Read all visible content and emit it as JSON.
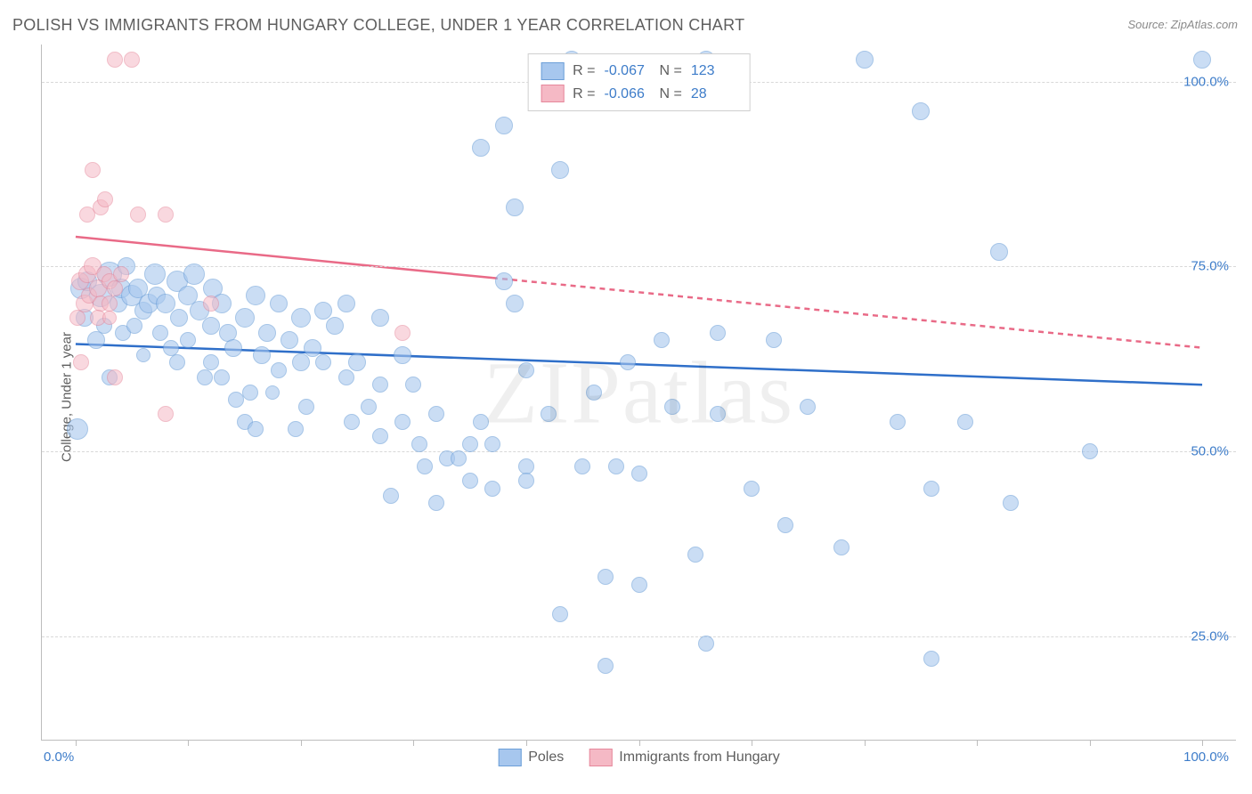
{
  "title": "POLISH VS IMMIGRANTS FROM HUNGARY COLLEGE, UNDER 1 YEAR CORRELATION CHART",
  "source": "Source: ZipAtlas.com",
  "watermark": "ZIPatlas",
  "xlabel": "",
  "ylabel": "College, Under 1 year",
  "xmin": -3,
  "xmax": 103,
  "ymin": 11,
  "ymax": 105,
  "x_tick_min_label": "0.0%",
  "x_tick_max_label": "100.0%",
  "y_ticks": [
    {
      "value": 25.0,
      "label": "25.0%"
    },
    {
      "value": 50.0,
      "label": "50.0%"
    },
    {
      "value": 75.0,
      "label": "75.0%"
    },
    {
      "value": 100.0,
      "label": "100.0%"
    }
  ],
  "x_minor_ticks": [
    0,
    10,
    20,
    30,
    40,
    50,
    60,
    70,
    80,
    90,
    100
  ],
  "series": [
    {
      "name": "Poles",
      "fill": "#a7c7ee",
      "stroke": "#6c9fd8",
      "fill_opacity": 0.6,
      "line_color": "#2f6fc9",
      "R": "-0.067",
      "N": "123",
      "trend": {
        "y_at_x0": 64.5,
        "y_at_x100": 59.0,
        "solid_until_x": 100
      },
      "points": [
        {
          "x": 0.5,
          "y": 72,
          "r": 12
        },
        {
          "x": 0.8,
          "y": 68,
          "r": 10
        },
        {
          "x": 0.2,
          "y": 53,
          "r": 12
        },
        {
          "x": 1.0,
          "y": 73,
          "r": 11
        },
        {
          "x": 2.2,
          "y": 71,
          "r": 13
        },
        {
          "x": 1.8,
          "y": 65,
          "r": 10
        },
        {
          "x": 2.5,
          "y": 67,
          "r": 9
        },
        {
          "x": 3.0,
          "y": 74,
          "r": 14
        },
        {
          "x": 3.0,
          "y": 60,
          "r": 9
        },
        {
          "x": 3.8,
          "y": 70,
          "r": 10
        },
        {
          "x": 4.0,
          "y": 72,
          "r": 11
        },
        {
          "x": 4.5,
          "y": 75,
          "r": 10
        },
        {
          "x": 4.2,
          "y": 66,
          "r": 9
        },
        {
          "x": 5.0,
          "y": 71,
          "r": 12
        },
        {
          "x": 5.5,
          "y": 72,
          "r": 11
        },
        {
          "x": 5.2,
          "y": 67,
          "r": 9
        },
        {
          "x": 6.0,
          "y": 69,
          "r": 10
        },
        {
          "x": 6.0,
          "y": 63,
          "r": 8
        },
        {
          "x": 6.5,
          "y": 70,
          "r": 11
        },
        {
          "x": 7.0,
          "y": 74,
          "r": 12
        },
        {
          "x": 7.2,
          "y": 71,
          "r": 10
        },
        {
          "x": 7.5,
          "y": 66,
          "r": 9
        },
        {
          "x": 8.0,
          "y": 70,
          "r": 11
        },
        {
          "x": 8.5,
          "y": 64,
          "r": 9
        },
        {
          "x": 9.0,
          "y": 73,
          "r": 12
        },
        {
          "x": 9.2,
          "y": 68,
          "r": 10
        },
        {
          "x": 9,
          "y": 62,
          "r": 9
        },
        {
          "x": 10.0,
          "y": 71,
          "r": 11
        },
        {
          "x": 10.5,
          "y": 74,
          "r": 12
        },
        {
          "x": 10.0,
          "y": 65,
          "r": 9
        },
        {
          "x": 11.0,
          "y": 69,
          "r": 11
        },
        {
          "x": 11.5,
          "y": 60,
          "r": 9
        },
        {
          "x": 12.0,
          "y": 67,
          "r": 10
        },
        {
          "x": 12.2,
          "y": 72,
          "r": 11
        },
        {
          "x": 12,
          "y": 62,
          "r": 9
        },
        {
          "x": 13.0,
          "y": 70,
          "r": 11
        },
        {
          "x": 13.5,
          "y": 66,
          "r": 10
        },
        {
          "x": 13,
          "y": 60,
          "r": 9
        },
        {
          "x": 14.0,
          "y": 64,
          "r": 10
        },
        {
          "x": 14.2,
          "y": 57,
          "r": 9
        },
        {
          "x": 15.0,
          "y": 68,
          "r": 11
        },
        {
          "x": 15.5,
          "y": 58,
          "r": 9
        },
        {
          "x": 15,
          "y": 54,
          "r": 9
        },
        {
          "x": 16.0,
          "y": 71,
          "r": 11
        },
        {
          "x": 16.5,
          "y": 63,
          "r": 10
        },
        {
          "x": 16,
          "y": 53,
          "r": 9
        },
        {
          "x": 17.0,
          "y": 66,
          "r": 10
        },
        {
          "x": 17.5,
          "y": 58,
          "r": 8
        },
        {
          "x": 18.0,
          "y": 70,
          "r": 10
        },
        {
          "x": 18,
          "y": 61,
          "r": 9
        },
        {
          "x": 19.0,
          "y": 65,
          "r": 10
        },
        {
          "x": 19.5,
          "y": 53,
          "r": 9
        },
        {
          "x": 20.0,
          "y": 68,
          "r": 11
        },
        {
          "x": 20.0,
          "y": 62,
          "r": 10
        },
        {
          "x": 20.5,
          "y": 56,
          "r": 9
        },
        {
          "x": 21.0,
          "y": 64,
          "r": 10
        },
        {
          "x": 22.0,
          "y": 69,
          "r": 10
        },
        {
          "x": 22.0,
          "y": 62,
          "r": 9
        },
        {
          "x": 23.0,
          "y": 67,
          "r": 10
        },
        {
          "x": 24.0,
          "y": 70,
          "r": 10
        },
        {
          "x": 24.0,
          "y": 60,
          "r": 9
        },
        {
          "x": 24.5,
          "y": 54,
          "r": 9
        },
        {
          "x": 25,
          "y": 62,
          "r": 10
        },
        {
          "x": 26,
          "y": 56,
          "r": 9
        },
        {
          "x": 27,
          "y": 68,
          "r": 10
        },
        {
          "x": 27,
          "y": 59,
          "r": 9
        },
        {
          "x": 27,
          "y": 52,
          "r": 9
        },
        {
          "x": 28,
          "y": 44,
          "r": 9
        },
        {
          "x": 29,
          "y": 63,
          "r": 10
        },
        {
          "x": 29,
          "y": 54,
          "r": 9
        },
        {
          "x": 30,
          "y": 59,
          "r": 9
        },
        {
          "x": 30.5,
          "y": 51,
          "r": 9
        },
        {
          "x": 31,
          "y": 48,
          "r": 9
        },
        {
          "x": 32,
          "y": 43,
          "r": 9
        },
        {
          "x": 32,
          "y": 55,
          "r": 9
        },
        {
          "x": 33,
          "y": 49,
          "r": 9
        },
        {
          "x": 34,
          "y": 49,
          "r": 9
        },
        {
          "x": 35,
          "y": 51,
          "r": 9
        },
        {
          "x": 35,
          "y": 46,
          "r": 9
        },
        {
          "x": 36,
          "y": 54,
          "r": 9
        },
        {
          "x": 36,
          "y": 91,
          "r": 10
        },
        {
          "x": 37,
          "y": 51,
          "r": 9
        },
        {
          "x": 37,
          "y": 45,
          "r": 9
        },
        {
          "x": 38,
          "y": 73,
          "r": 10
        },
        {
          "x": 38,
          "y": 94,
          "r": 10
        },
        {
          "x": 39,
          "y": 83,
          "r": 10
        },
        {
          "x": 39,
          "y": 70,
          "r": 10
        },
        {
          "x": 40,
          "y": 61,
          "r": 9
        },
        {
          "x": 40,
          "y": 48,
          "r": 9
        },
        {
          "x": 40,
          "y": 46,
          "r": 9
        },
        {
          "x": 42,
          "y": 55,
          "r": 9
        },
        {
          "x": 43,
          "y": 88,
          "r": 10
        },
        {
          "x": 43,
          "y": 28,
          "r": 9
        },
        {
          "x": 45,
          "y": 48,
          "r": 9
        },
        {
          "x": 46,
          "y": 58,
          "r": 9
        },
        {
          "x": 47,
          "y": 33,
          "r": 9
        },
        {
          "x": 47,
          "y": 21,
          "r": 9
        },
        {
          "x": 48,
          "y": 48,
          "r": 9
        },
        {
          "x": 49,
          "y": 62,
          "r": 9
        },
        {
          "x": 50,
          "y": 47,
          "r": 9
        },
        {
          "x": 50,
          "y": 32,
          "r": 9
        },
        {
          "x": 44,
          "y": 103,
          "r": 10
        },
        {
          "x": 52,
          "y": 65,
          "r": 9
        },
        {
          "x": 53,
          "y": 56,
          "r": 9
        },
        {
          "x": 55,
          "y": 36,
          "r": 9
        },
        {
          "x": 56,
          "y": 24,
          "r": 9
        },
        {
          "x": 56,
          "y": 103,
          "r": 10
        },
        {
          "x": 57,
          "y": 55,
          "r": 9
        },
        {
          "x": 57,
          "y": 66,
          "r": 9
        },
        {
          "x": 60,
          "y": 45,
          "r": 9
        },
        {
          "x": 62,
          "y": 65,
          "r": 9
        },
        {
          "x": 63,
          "y": 40,
          "r": 9
        },
        {
          "x": 65,
          "y": 56,
          "r": 9
        },
        {
          "x": 68,
          "y": 37,
          "r": 9
        },
        {
          "x": 70,
          "y": 103,
          "r": 10
        },
        {
          "x": 73,
          "y": 54,
          "r": 9
        },
        {
          "x": 75,
          "y": 96,
          "r": 10
        },
        {
          "x": 76,
          "y": 45,
          "r": 9
        },
        {
          "x": 76,
          "y": 22,
          "r": 9
        },
        {
          "x": 79,
          "y": 54,
          "r": 9
        },
        {
          "x": 82,
          "y": 77,
          "r": 10
        },
        {
          "x": 83,
          "y": 43,
          "r": 9
        },
        {
          "x": 90,
          "y": 50,
          "r": 9
        },
        {
          "x": 100,
          "y": 103,
          "r": 10
        }
      ]
    },
    {
      "name": "Immigrants from Hungary",
      "fill": "#f5b9c5",
      "stroke": "#e6879b",
      "fill_opacity": 0.55,
      "line_color": "#e96a87",
      "R": "-0.066",
      "N": "28",
      "trend": {
        "y_at_x0": 79.0,
        "y_at_x100": 64.0,
        "solid_until_x": 37
      },
      "points": [
        {
          "x": 0.4,
          "y": 73,
          "r": 10
        },
        {
          "x": 0.2,
          "y": 68,
          "r": 9
        },
        {
          "x": 0.8,
          "y": 70,
          "r": 10
        },
        {
          "x": 1.0,
          "y": 74,
          "r": 10
        },
        {
          "x": 0.5,
          "y": 62,
          "r": 9
        },
        {
          "x": 1.2,
          "y": 71,
          "r": 9
        },
        {
          "x": 1.5,
          "y": 75,
          "r": 10
        },
        {
          "x": 1.0,
          "y": 82,
          "r": 9
        },
        {
          "x": 1.5,
          "y": 88,
          "r": 9
        },
        {
          "x": 2.0,
          "y": 72,
          "r": 10
        },
        {
          "x": 2.2,
          "y": 70,
          "r": 9
        },
        {
          "x": 2.5,
          "y": 74,
          "r": 9
        },
        {
          "x": 2.0,
          "y": 68,
          "r": 9
        },
        {
          "x": 2.2,
          "y": 83,
          "r": 9
        },
        {
          "x": 2.6,
          "y": 84,
          "r": 9
        },
        {
          "x": 3.0,
          "y": 73,
          "r": 9
        },
        {
          "x": 3.0,
          "y": 70,
          "r": 9
        },
        {
          "x": 3.5,
          "y": 72,
          "r": 9
        },
        {
          "x": 3.0,
          "y": 68,
          "r": 8
        },
        {
          "x": 3.5,
          "y": 60,
          "r": 9
        },
        {
          "x": 4.0,
          "y": 74,
          "r": 9
        },
        {
          "x": 3.5,
          "y": 103,
          "r": 9
        },
        {
          "x": 5.0,
          "y": 103,
          "r": 9
        },
        {
          "x": 5.5,
          "y": 82,
          "r": 9
        },
        {
          "x": 8.0,
          "y": 55,
          "r": 9
        },
        {
          "x": 8.0,
          "y": 82,
          "r": 9
        },
        {
          "x": 12,
          "y": 70,
          "r": 9
        },
        {
          "x": 29,
          "y": 66,
          "r": 9
        }
      ]
    }
  ],
  "bottom_legend": [
    {
      "swatch_fill": "#a7c7ee",
      "swatch_stroke": "#6c9fd8",
      "label": "Poles"
    },
    {
      "swatch_fill": "#f5b9c5",
      "swatch_stroke": "#e6879b",
      "label": "Immigrants from Hungary"
    }
  ],
  "stat_legend_labels": {
    "r": "R =",
    "n": "N ="
  }
}
